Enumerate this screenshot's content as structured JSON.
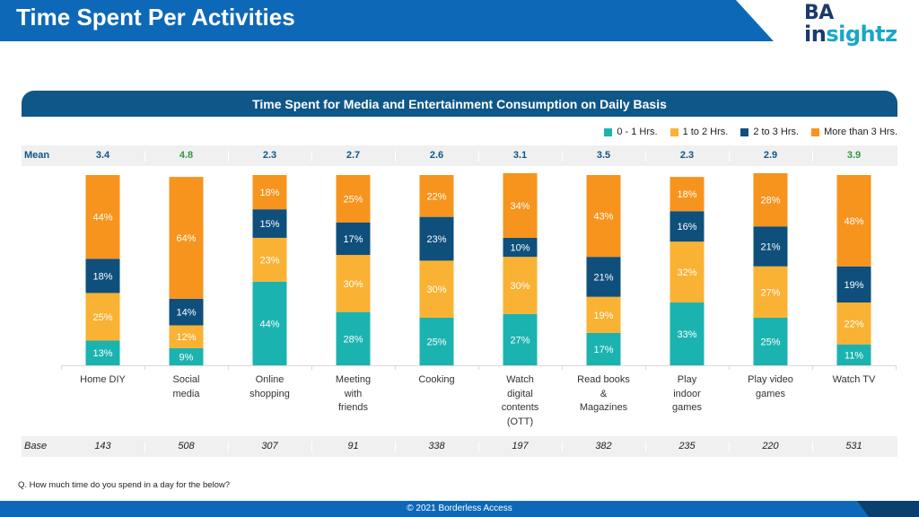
{
  "page": {
    "title": "Time Spent Per Activities",
    "logo_top": "BA",
    "logo_bottom_i": "in",
    "logo_bottom_rest": "sightz",
    "question": "Q. How much time do you spend in a day for the below?",
    "footer": "© 2021  Borderless Access",
    "colors": {
      "title_bar": "#0e68b8",
      "header_bar": "#0e5788",
      "footer_bar": "#0e68b8",
      "mean_highlight": "#2e9a45"
    }
  },
  "chart_data": {
    "type": "bar",
    "stacked": true,
    "percent": true,
    "title": "Time Spent for Media and Entertainment Consumption  on Daily Basis",
    "legend_position": "top-right",
    "categories": [
      "Home DIY",
      "Social\nmedia",
      "Online\nshopping",
      "Meeting\nwith\nfriends",
      "Cooking",
      "Watch\ndigital\ncontents\n(OTT)",
      "Read books\n&\nMagazines",
      "Play\nindoor\ngames",
      "Play video\ngames",
      "Watch TV"
    ],
    "series": [
      {
        "name": "0 - 1 Hrs.",
        "color": "#1bb3b0",
        "label_color": "#ffffff",
        "values": [
          13,
          9,
          44,
          28,
          25,
          27,
          17,
          33,
          25,
          11
        ]
      },
      {
        "name": "1 to 2 Hrs.",
        "color": "#f9b233",
        "label_color": "#ffffff",
        "values": [
          25,
          12,
          23,
          30,
          30,
          30,
          19,
          32,
          27,
          22
        ]
      },
      {
        "name": "2 to 3 Hrs.",
        "color": "#0e4f7c",
        "label_color": "#ffffff",
        "values": [
          18,
          14,
          15,
          17,
          23,
          10,
          21,
          16,
          21,
          19
        ]
      },
      {
        "name": "More than 3 Hrs.",
        "color": "#f7941d",
        "label_color": "#ffffff",
        "values": [
          44,
          64,
          18,
          25,
          22,
          34,
          43,
          18,
          28,
          48
        ]
      }
    ],
    "mean_label": "Mean",
    "mean": [
      "3.4",
      "4.8",
      "2.3",
      "2.7",
      "2.6",
      "3.1",
      "3.5",
      "2.3",
      "2.9",
      "3.9"
    ],
    "mean_highlight": [
      false,
      true,
      false,
      false,
      false,
      false,
      false,
      false,
      false,
      true
    ],
    "base_label": "Base",
    "base": [
      "143",
      "508",
      "307",
      "91",
      "338",
      "197",
      "382",
      "235",
      "220",
      "531"
    ]
  }
}
